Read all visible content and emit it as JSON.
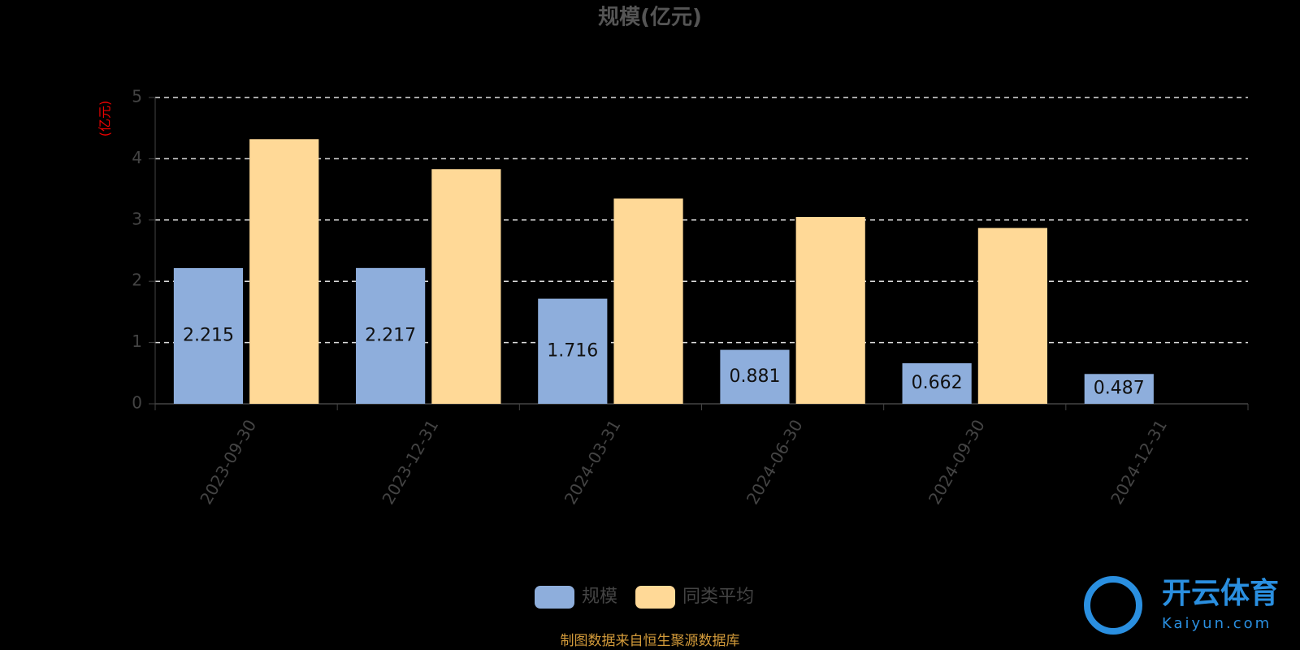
{
  "chart_data": {
    "type": "bar",
    "title": "规模(亿元)",
    "y_label": "(亿元)",
    "categories": [
      "2023-09-30",
      "2023-12-31",
      "2024-03-31",
      "2024-06-30",
      "2024-09-30",
      "2024-12-31"
    ],
    "series": [
      {
        "name": "规模",
        "color": "#8eaedc",
        "values": [
          2.215,
          2.217,
          1.716,
          0.881,
          0.662,
          0.487
        ],
        "data_labels": true
      },
      {
        "name": "同类平均",
        "color": "#ffd997",
        "values": [
          4.32,
          3.83,
          3.35,
          3.05,
          2.87,
          null
        ],
        "data_labels": false
      }
    ],
    "ylim": [
      0,
      5
    ],
    "yticks": [
      0,
      1,
      2,
      3,
      4,
      5
    ],
    "grid": true,
    "legend": "bottom",
    "source": "制图数据来自恒生聚源数据库",
    "watermark": {
      "brand": "开云体育",
      "site": "Kaiyun.com"
    }
  }
}
